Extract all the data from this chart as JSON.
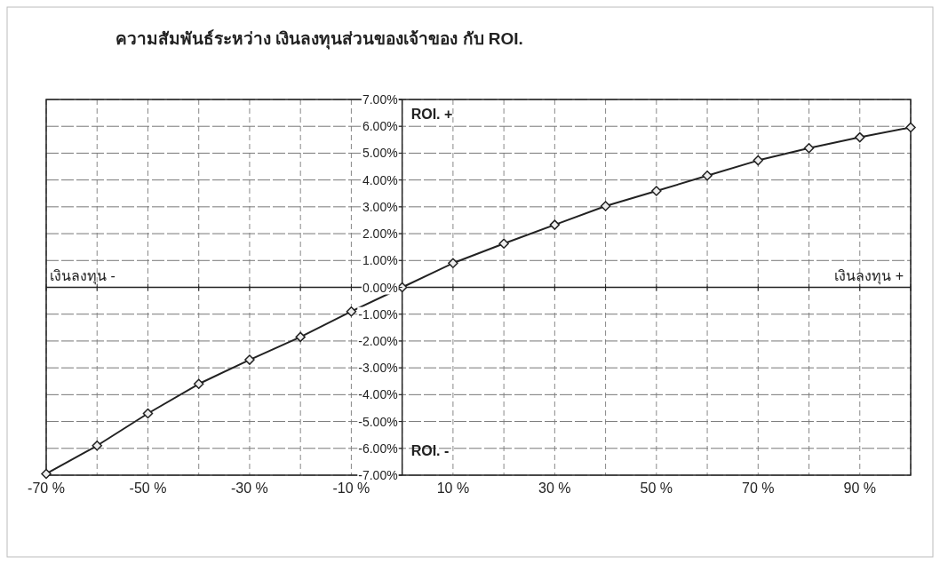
{
  "chart_data": {
    "type": "line",
    "title": "ความสัมพันธ์ระหว่าง เงินลงทุนส่วนของเจ้าของ กับ ROI.",
    "x": [
      -70,
      -60,
      -50,
      -40,
      -30,
      -20,
      -10,
      0,
      10,
      20,
      30,
      40,
      50,
      60,
      70,
      80,
      90,
      100
    ],
    "series": [
      {
        "color": "#222222",
        "values": [
          -6.95,
          -5.9,
          -4.7,
          -3.6,
          -2.7,
          -1.85,
          -0.9,
          0,
          0.9,
          1.63,
          2.33,
          3.03,
          3.59,
          4.16,
          4.73,
          5.19,
          5.59,
          5.96
        ]
      }
    ],
    "xlim": [
      -70,
      100
    ],
    "xticks": [
      {
        "value": -70,
        "label": "-70 %"
      },
      {
        "value": -60,
        "label": null
      },
      {
        "value": -50,
        "label": "-50 %"
      },
      {
        "value": -40,
        "label": null
      },
      {
        "value": -30,
        "label": "-30 %"
      },
      {
        "value": -20,
        "label": null
      },
      {
        "value": -10,
        "label": "-10 %"
      },
      {
        "value": 0,
        "label": null
      },
      {
        "value": 10,
        "label": "10 %"
      },
      {
        "value": 20,
        "label": null
      },
      {
        "value": 30,
        "label": "30 %"
      },
      {
        "value": 40,
        "label": null
      },
      {
        "value": 50,
        "label": "50 %"
      },
      {
        "value": 60,
        "label": null
      },
      {
        "value": 70,
        "label": "70 %"
      },
      {
        "value": 80,
        "label": null
      },
      {
        "value": 90,
        "label": "90 %"
      },
      {
        "value": 100,
        "label": null
      }
    ],
    "ylim": [
      -7,
      7
    ],
    "yticks": [
      {
        "value": -7,
        "label": "-7.00%"
      },
      {
        "value": -6,
        "label": "-6.00%"
      },
      {
        "value": -5,
        "label": "-5.00%"
      },
      {
        "value": -4,
        "label": "-4.00%"
      },
      {
        "value": -3,
        "label": "-3.00%"
      },
      {
        "value": -2,
        "label": "-2.00%"
      },
      {
        "value": -1,
        "label": "-1.00%"
      },
      {
        "value": 0,
        "label": "0.00%"
      },
      {
        "value": 1,
        "label": "1.00%"
      },
      {
        "value": 2,
        "label": "2.00%"
      },
      {
        "value": 3,
        "label": "3.00%"
      },
      {
        "value": 4,
        "label": "4.00%"
      },
      {
        "value": 5,
        "label": "5.00%"
      },
      {
        "value": 6,
        "label": "6.00%"
      },
      {
        "value": 7,
        "label": "7.00%"
      }
    ],
    "annotations": [
      "ROI. +",
      "ROI. -",
      "เงินลงทุน -",
      "เงินลงทุน +"
    ],
    "grid": true,
    "marker": "diamond"
  }
}
